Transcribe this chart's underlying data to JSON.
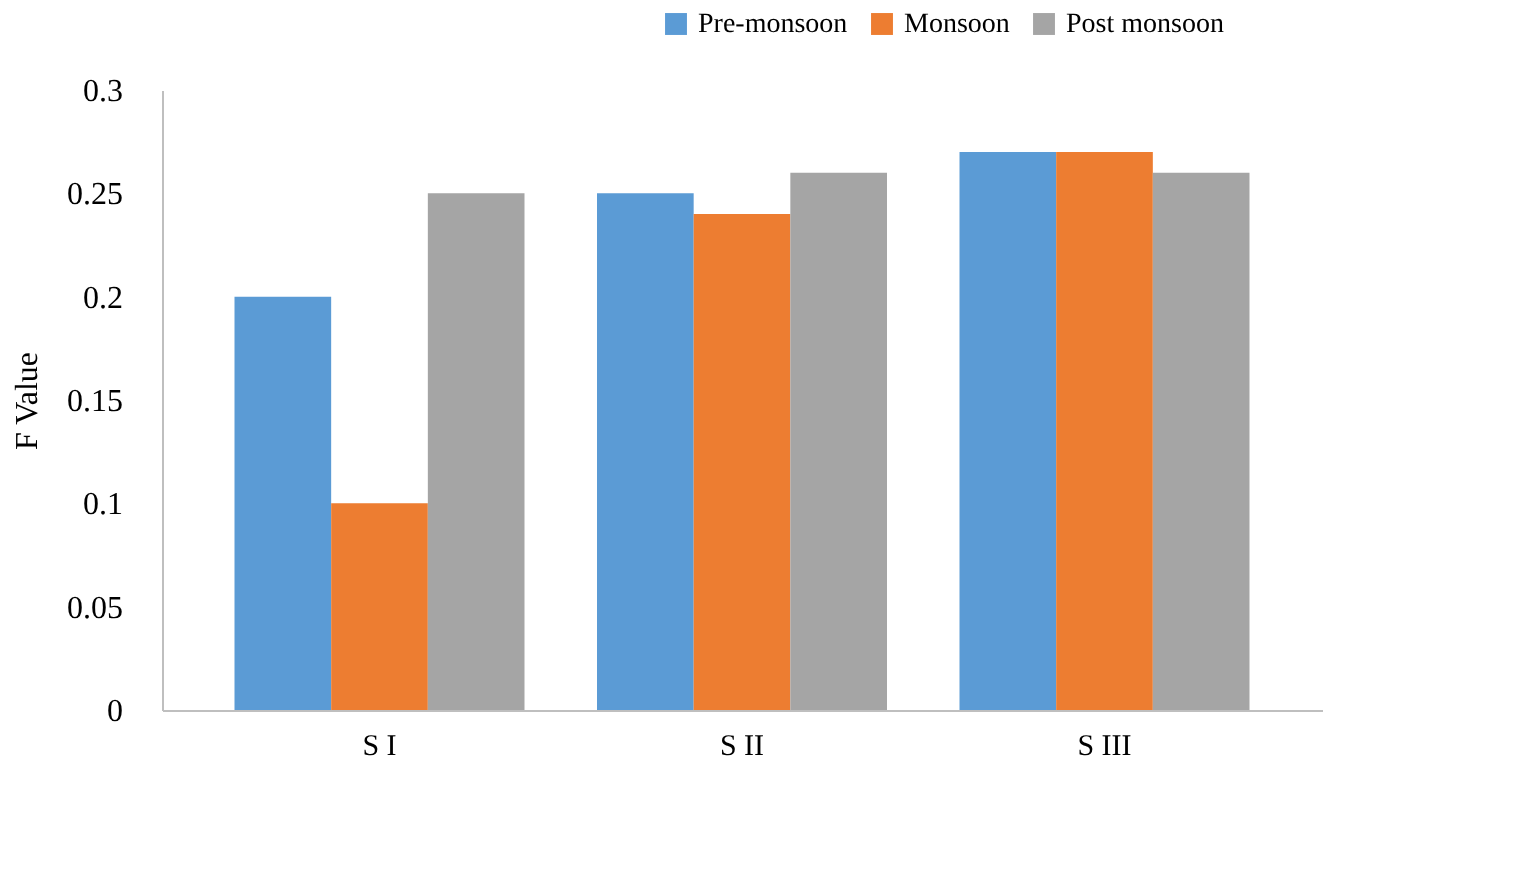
{
  "chart_data": {
    "type": "bar",
    "ylabel": "F  Value",
    "categories": [
      "S I",
      "S II",
      "S III"
    ],
    "series": [
      {
        "name": "Pre-monsoon",
        "color": "#5b9bd5",
        "values": [
          0.2,
          0.25,
          0.27
        ]
      },
      {
        "name": "Monsoon",
        "color": "#ed7d31",
        "values": [
          0.1,
          0.24,
          0.27
        ]
      },
      {
        "name": "Post monsoon",
        "color": "#a5a5a5",
        "values": [
          0.25,
          0.26,
          0.26
        ]
      }
    ],
    "ylim": [
      0,
      0.3
    ],
    "yticks": [
      0,
      0.05,
      0.1,
      0.15,
      0.2,
      0.25,
      0.3
    ],
    "grid": false,
    "legend": "top right"
  }
}
